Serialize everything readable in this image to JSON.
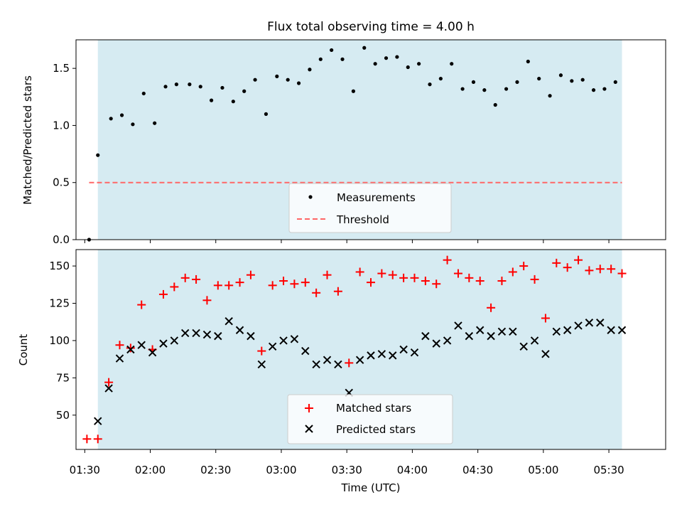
{
  "title": "Flux total observing time = 4.00 h",
  "xlabel": "Time (UTC)",
  "x_ticks": [
    "01:30",
    "02:00",
    "02:30",
    "03:00",
    "03:30",
    "04:00",
    "04:30",
    "05:00",
    "05:30"
  ],
  "colors": {
    "window_fill": "#add8e6",
    "measurements": "#000000",
    "threshold": "#ff6666",
    "matched": "#ff0000",
    "predicted": "#000000"
  },
  "chart_data": [
    {
      "type": "scatter",
      "panel": "top",
      "ylabel": "Matched/Predicted stars",
      "ylim": [
        0.0,
        1.75
      ],
      "yticks": [
        0.0,
        0.5,
        1.0,
        1.5
      ],
      "ytick_labels": [
        "0.0",
        "0.5",
        "1.0",
        "1.5"
      ],
      "xlim": [
        "01:26",
        "05:56"
      ],
      "observing_window": [
        "01:36",
        "05:36"
      ],
      "legend_position": "lower center",
      "series": [
        {
          "name": "Measurements",
          "marker": "dot",
          "x": [
            "01:32",
            "01:36",
            "01:42",
            "01:47",
            "01:52",
            "01:57",
            "02:02",
            "02:07",
            "02:12",
            "02:18",
            "02:23",
            "02:28",
            "02:33",
            "02:38",
            "02:43",
            "02:48",
            "02:53",
            "02:58",
            "03:03",
            "03:08",
            "03:13",
            "03:18",
            "03:23",
            "03:28",
            "03:33",
            "03:38",
            "03:43",
            "03:48",
            "03:53",
            "03:58",
            "04:03",
            "04:08",
            "04:13",
            "04:18",
            "04:23",
            "04:28",
            "04:33",
            "04:38",
            "04:43",
            "04:48",
            "04:53",
            "04:58",
            "05:03",
            "05:08",
            "05:13",
            "05:18",
            "05:23",
            "05:28",
            "05:33"
          ],
          "y": [
            0.0,
            0.74,
            1.06,
            1.09,
            1.01,
            1.28,
            1.02,
            1.34,
            1.36,
            1.36,
            1.34,
            1.22,
            1.33,
            1.21,
            1.3,
            1.4,
            1.1,
            1.43,
            1.4,
            1.37,
            1.49,
            1.58,
            1.66,
            1.58,
            1.3,
            1.68,
            1.54,
            1.59,
            1.6,
            1.51,
            1.54,
            1.36,
            1.41,
            1.54,
            1.32,
            1.38,
            1.31,
            1.18,
            1.32,
            1.38,
            1.56,
            1.41,
            1.26,
            1.44,
            1.39,
            1.4,
            1.31,
            1.32,
            1.38
          ]
        },
        {
          "name": "Threshold",
          "style": "dashed",
          "x": [
            "01:32",
            "05:36"
          ],
          "y": [
            0.5,
            0.5
          ]
        }
      ]
    },
    {
      "type": "scatter",
      "panel": "bottom",
      "ylabel": "Count",
      "ylim": [
        27,
        161
      ],
      "yticks": [
        50,
        75,
        100,
        125,
        150
      ],
      "ytick_labels": [
        "50",
        "75",
        "100",
        "125",
        "150"
      ],
      "xlim": [
        "01:26",
        "05:56"
      ],
      "observing_window": [
        "01:36",
        "05:36"
      ],
      "legend_position": "lower center",
      "series": [
        {
          "name": "Matched stars",
          "marker": "plus",
          "x": [
            "01:31",
            "01:36",
            "01:41",
            "01:46",
            "01:51",
            "01:56",
            "02:01",
            "02:06",
            "02:11",
            "02:16",
            "02:21",
            "02:26",
            "02:31",
            "02:36",
            "02:41",
            "02:46",
            "02:51",
            "02:56",
            "03:01",
            "03:06",
            "03:11",
            "03:16",
            "03:21",
            "03:26",
            "03:31",
            "03:36",
            "03:41",
            "03:46",
            "03:51",
            "03:56",
            "04:01",
            "04:06",
            "04:11",
            "04:16",
            "04:21",
            "04:26",
            "04:31",
            "04:36",
            "04:41",
            "04:46",
            "04:51",
            "04:56",
            "05:01",
            "05:06",
            "05:11",
            "05:16",
            "05:21",
            "05:26",
            "05:31",
            "05:36"
          ],
          "y": [
            34,
            34,
            72,
            97,
            95,
            124,
            94,
            131,
            136,
            142,
            141,
            127,
            137,
            137,
            139,
            144,
            93,
            137,
            140,
            138,
            139,
            132,
            144,
            133,
            85,
            146,
            139,
            145,
            144,
            142,
            142,
            140,
            138,
            154,
            145,
            142,
            140,
            122,
            140,
            146,
            150,
            141,
            115,
            152,
            149,
            154,
            147,
            148,
            148,
            145
          ]
        },
        {
          "name": "Predicted stars",
          "marker": "x",
          "x": [
            "01:36",
            "01:41",
            "01:46",
            "01:51",
            "01:56",
            "02:01",
            "02:06",
            "02:11",
            "02:16",
            "02:21",
            "02:26",
            "02:31",
            "02:36",
            "02:41",
            "02:46",
            "02:51",
            "02:56",
            "03:01",
            "03:06",
            "03:11",
            "03:16",
            "03:21",
            "03:26",
            "03:31",
            "03:36",
            "03:41",
            "03:46",
            "03:51",
            "03:56",
            "04:01",
            "04:06",
            "04:11",
            "04:16",
            "04:21",
            "04:26",
            "04:31",
            "04:36",
            "04:41",
            "04:46",
            "04:51",
            "04:56",
            "05:01",
            "05:06",
            "05:11",
            "05:16",
            "05:21",
            "05:26",
            "05:31",
            "05:36"
          ],
          "y": [
            46,
            68,
            88,
            94,
            97,
            92,
            98,
            100,
            105,
            105,
            104,
            103,
            113,
            107,
            103,
            84,
            96,
            100,
            101,
            93,
            84,
            87,
            84,
            65,
            87,
            90,
            91,
            90,
            94,
            92,
            103,
            98,
            100,
            110,
            103,
            107,
            103,
            106,
            106,
            96,
            100,
            91,
            106,
            107,
            110,
            112,
            112,
            107,
            107
          ]
        }
      ]
    }
  ]
}
